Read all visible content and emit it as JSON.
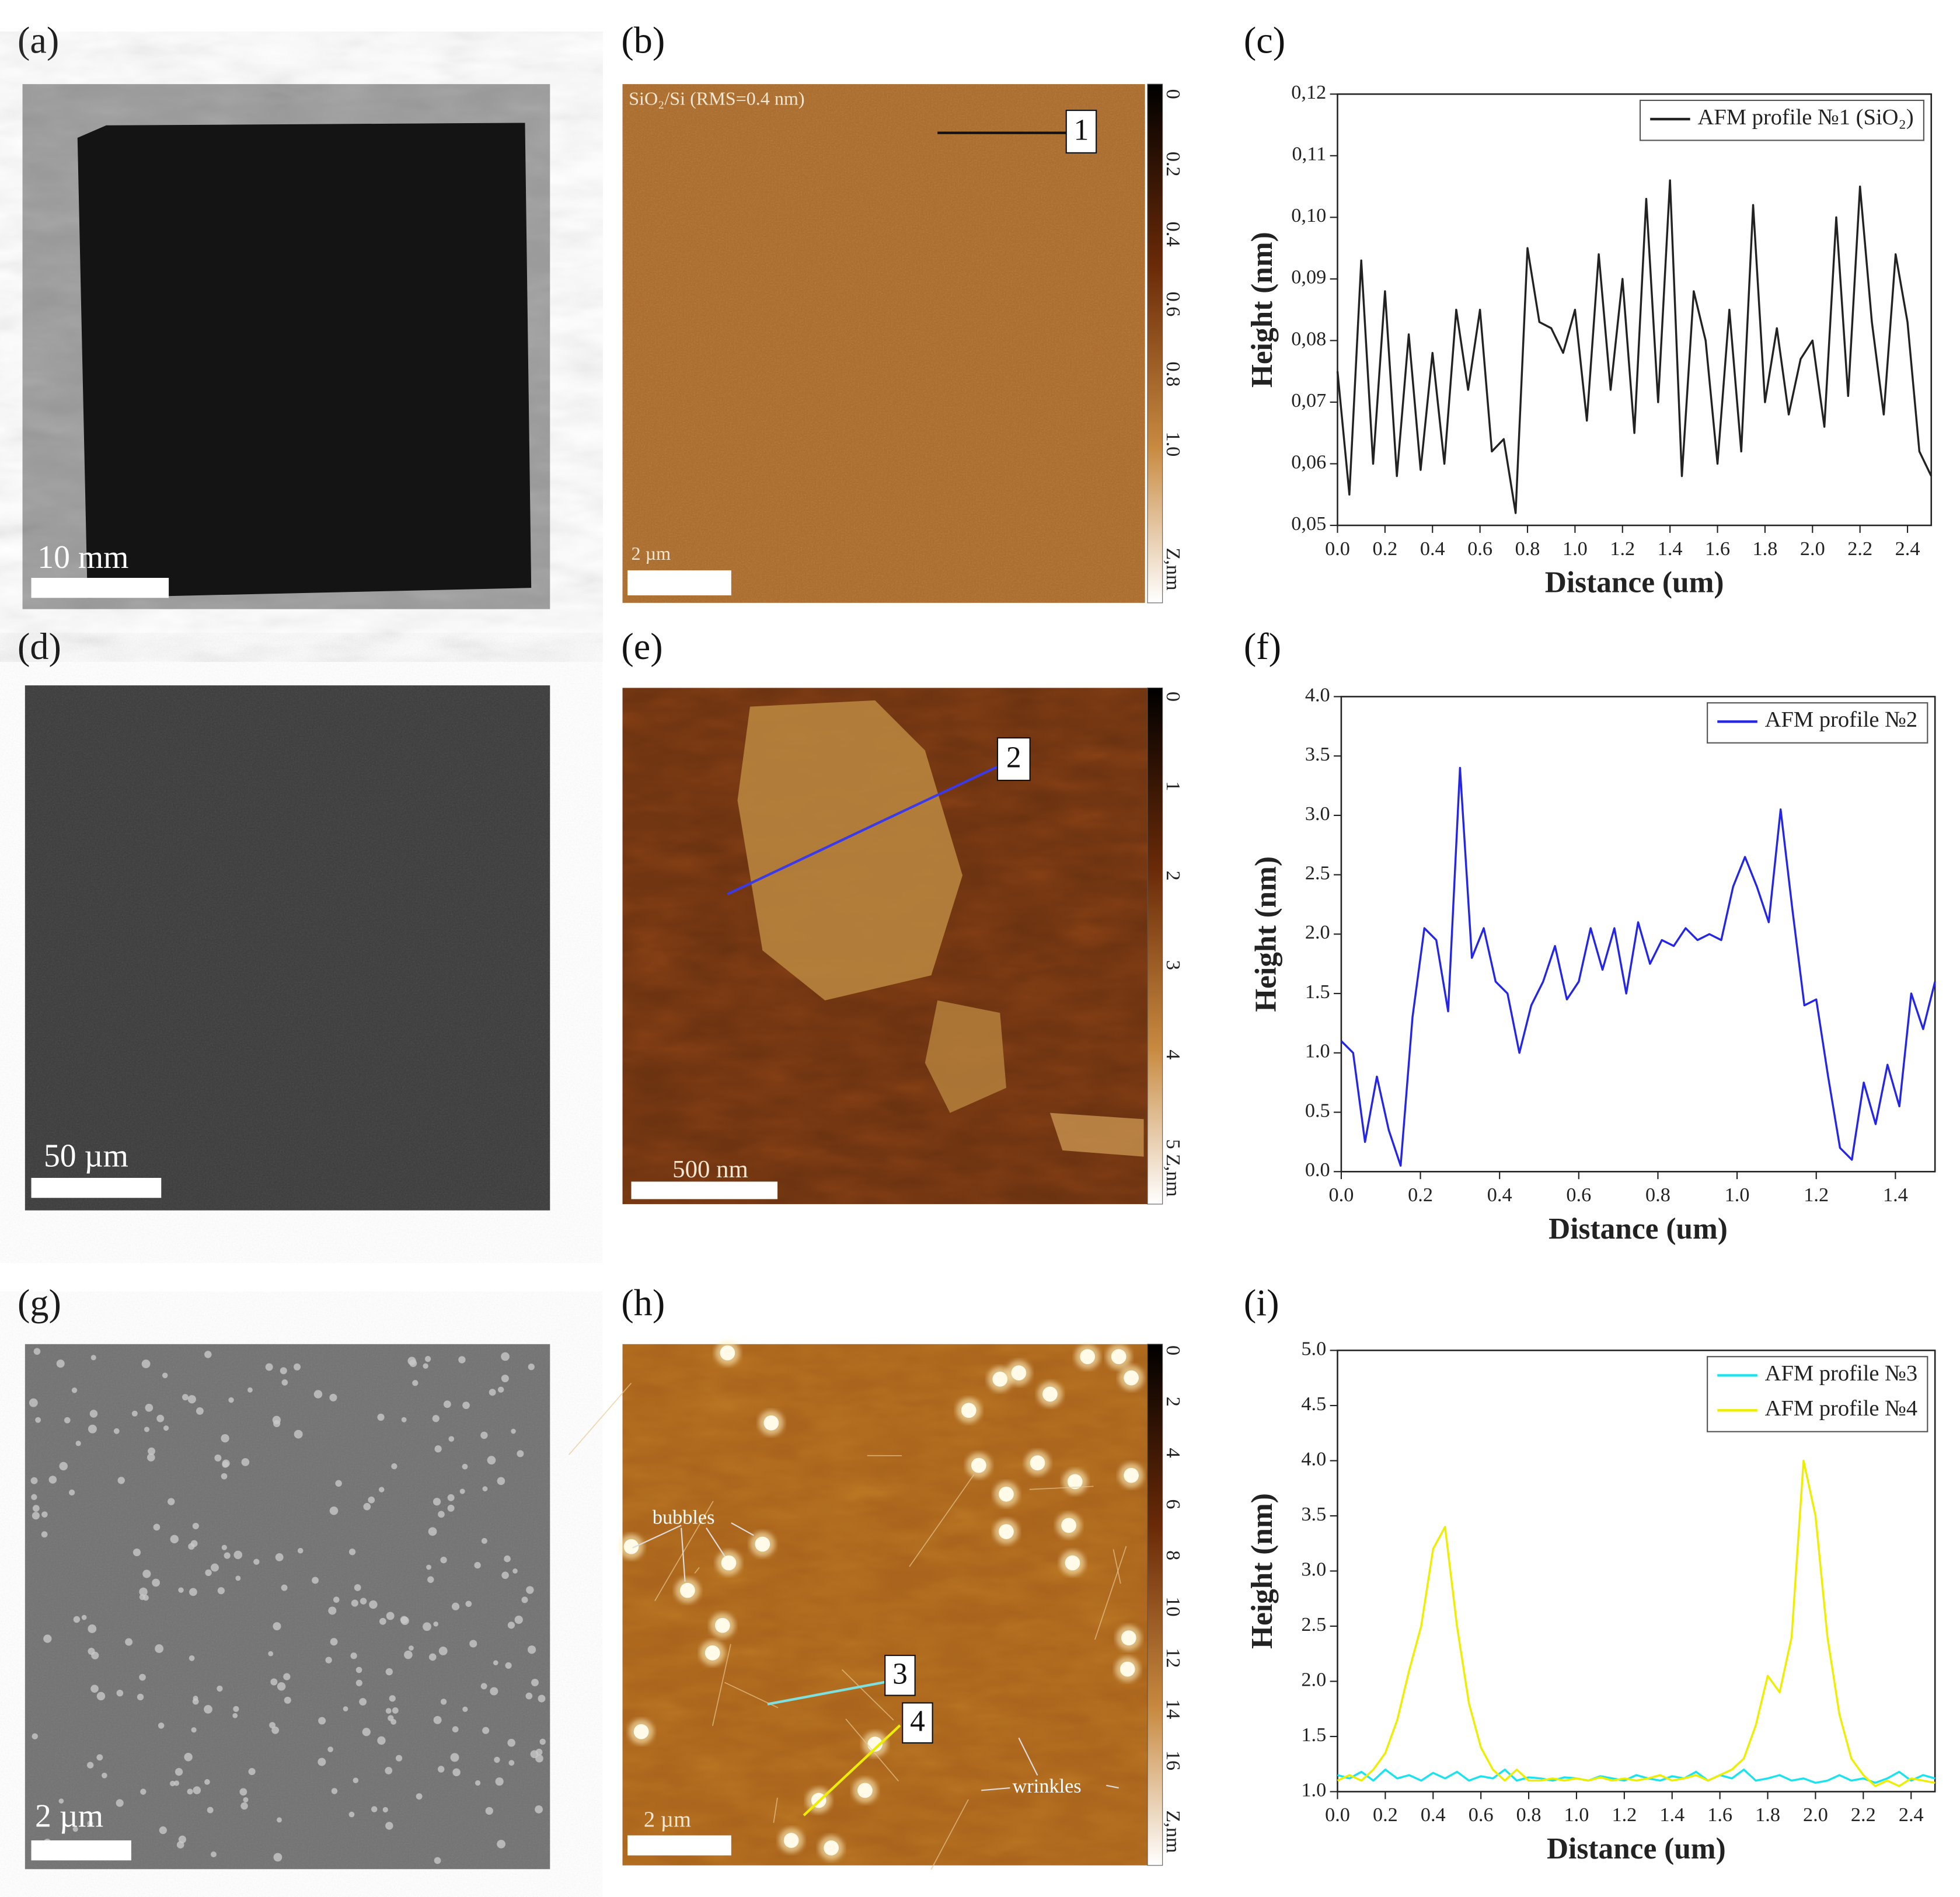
{
  "panels": [
    {
      "label": "(a)",
      "scale_bar": "10 mm"
    },
    {
      "label": "(b)",
      "caption": "SiO₂/Si (RMS=0.4 nm)",
      "profile_marks": [
        "1"
      ],
      "colorbar": {
        "ticks": [
          "0",
          "0.2",
          "0.4",
          "0.6",
          "0.8",
          "1.0"
        ],
        "unit": "Z,nm"
      },
      "scale_bar": "2 µm"
    },
    {
      "label": "(d)",
      "scale_bar": "50 µm"
    },
    {
      "label": "(e)",
      "profile_marks": [
        "2"
      ],
      "colorbar": {
        "ticks": [
          "0",
          "1",
          "2",
          "3",
          "4",
          "5"
        ],
        "unit": "Z,nm"
      },
      "scale_bar": "500 nm"
    },
    {
      "label": "(g)",
      "scale_bar": "2 µm"
    },
    {
      "label": "(h)",
      "profile_marks": [
        "3",
        "4"
      ],
      "annotations": [
        "bubbles",
        "wrinkles"
      ],
      "colorbar": {
        "ticks": [
          "0",
          "2",
          "4",
          "6",
          "8",
          "10",
          "12",
          "14",
          "16"
        ],
        "unit": "Z,nm"
      },
      "scale_bar": "2 µm"
    }
  ],
  "chart_data": [
    {
      "type": "line",
      "label": "(c)",
      "x_label": "Distance (um)",
      "y_label": "Height (nm)",
      "legend": "upper right",
      "x": [
        0,
        0.05,
        0.1,
        0.15,
        0.2,
        0.25,
        0.3,
        0.35,
        0.4,
        0.45,
        0.5,
        0.55,
        0.6,
        0.65,
        0.7,
        0.75,
        0.8,
        0.85,
        0.9,
        0.95,
        1,
        1.05,
        1.1,
        1.15,
        1.2,
        1.25,
        1.3,
        1.35,
        1.4,
        1.45,
        1.5,
        1.55,
        1.6,
        1.65,
        1.7,
        1.75,
        1.8,
        1.85,
        1.9,
        1.95,
        2,
        2.05,
        2.1,
        2.15,
        2.2,
        2.25,
        2.3,
        2.35,
        2.4,
        2.45,
        2.5
      ],
      "series": [
        {
          "name": "AFM profile №1 (SiO₂)",
          "color": "#222222",
          "values": [
            0.075,
            0.055,
            0.093,
            0.06,
            0.088,
            0.058,
            0.081,
            0.059,
            0.078,
            0.06,
            0.085,
            0.072,
            0.085,
            0.062,
            0.064,
            0.052,
            0.095,
            0.083,
            0.082,
            0.078,
            0.085,
            0.067,
            0.094,
            0.072,
            0.09,
            0.065,
            0.103,
            0.07,
            0.106,
            0.058,
            0.088,
            0.08,
            0.06,
            0.085,
            0.062,
            0.102,
            0.07,
            0.082,
            0.068,
            0.077,
            0.08,
            0.066,
            0.1,
            0.071,
            0.105,
            0.083,
            0.068,
            0.094,
            0.083,
            0.062,
            0.058
          ]
        }
      ],
      "xlim": [
        0,
        2.5
      ],
      "ylim": [
        0.05,
        0.12
      ],
      "xticks": [
        {
          "value": 0,
          "label": "0.0"
        },
        0.2,
        0.4,
        0.6,
        0.8,
        {
          "value": 1,
          "label": "1.0"
        },
        1.2,
        1.4,
        1.6,
        1.8,
        {
          "value": 2,
          "label": "2.0"
        },
        2.2,
        2.4
      ],
      "yticks": [
        {
          "value": 0.05,
          "label": "0,05"
        },
        {
          "value": 0.06,
          "label": "0,06"
        },
        {
          "value": 0.07,
          "label": "0,07"
        },
        {
          "value": 0.08,
          "label": "0,08"
        },
        {
          "value": 0.09,
          "label": "0,09"
        },
        {
          "value": 0.1,
          "label": "0,10"
        },
        {
          "value": 0.11,
          "label": "0,11"
        },
        {
          "value": 0.12,
          "label": "0,12"
        }
      ]
    },
    {
      "type": "line",
      "label": "(f)",
      "x_label": "Distance (um)",
      "y_label": "Height (nm)",
      "legend": "upper right",
      "x": [
        0,
        0.03,
        0.06,
        0.09,
        0.12,
        0.15,
        0.18,
        0.21,
        0.24,
        0.27,
        0.3,
        0.33,
        0.36,
        0.39,
        0.42,
        0.45,
        0.48,
        0.51,
        0.54,
        0.57,
        0.6,
        0.63,
        0.66,
        0.69,
        0.72,
        0.75,
        0.78,
        0.81,
        0.84,
        0.87,
        0.9,
        0.93,
        0.96,
        0.99,
        1.02,
        1.05,
        1.08,
        1.11,
        1.14,
        1.17,
        1.2,
        1.23,
        1.26,
        1.29,
        1.32,
        1.35,
        1.38,
        1.41,
        1.44,
        1.47,
        1.5
      ],
      "series": [
        {
          "name": "AFM profile №2",
          "color": "#2525e8",
          "values": [
            1.1,
            1.0,
            0.25,
            0.8,
            0.35,
            0.05,
            1.3,
            2.05,
            1.95,
            1.35,
            3.4,
            1.8,
            2.05,
            1.6,
            1.5,
            1.0,
            1.4,
            1.6,
            1.9,
            1.45,
            1.6,
            2.05,
            1.7,
            2.05,
            1.5,
            2.1,
            1.75,
            1.95,
            1.9,
            2.05,
            1.95,
            2.0,
            1.95,
            2.4,
            2.65,
            2.4,
            2.1,
            3.05,
            2.2,
            1.4,
            1.45,
            0.8,
            0.2,
            0.1,
            0.75,
            0.4,
            0.9,
            0.55,
            1.5,
            1.2,
            1.6
          ]
        }
      ],
      "xlim": [
        0,
        1.5
      ],
      "ylim": [
        0,
        4
      ],
      "xticks": [
        {
          "value": 0,
          "label": "0.0"
        },
        0.2,
        0.4,
        0.6,
        0.8,
        {
          "value": 1,
          "label": "1.0"
        },
        1.2,
        1.4
      ],
      "yticks": [
        {
          "value": 0,
          "label": "0.0"
        },
        0.5,
        {
          "value": 1,
          "label": "1.0"
        },
        1.5,
        {
          "value": 2,
          "label": "2.0"
        },
        2.5,
        {
          "value": 3,
          "label": "3.0"
        },
        3.5,
        {
          "value": 4,
          "label": "4.0"
        }
      ]
    },
    {
      "type": "line",
      "label": "(i)",
      "x_label": "Distance (um)",
      "y_label": "Height (nm)",
      "legend": "upper right",
      "x": [
        0,
        0.05,
        0.1,
        0.15,
        0.2,
        0.25,
        0.3,
        0.35,
        0.4,
        0.45,
        0.5,
        0.55,
        0.6,
        0.65,
        0.7,
        0.75,
        0.8,
        0.85,
        0.9,
        0.95,
        1,
        1.05,
        1.1,
        1.15,
        1.2,
        1.25,
        1.3,
        1.35,
        1.4,
        1.45,
        1.5,
        1.55,
        1.6,
        1.65,
        1.7,
        1.75,
        1.8,
        1.85,
        1.9,
        1.95,
        2,
        2.05,
        2.1,
        2.15,
        2.2,
        2.25,
        2.3,
        2.35,
        2.4,
        2.45,
        2.5
      ],
      "series": [
        {
          "name": "AFM profile №3",
          "color": "#19e3ee",
          "values": [
            1.15,
            1.12,
            1.18,
            1.1,
            1.2,
            1.12,
            1.15,
            1.1,
            1.17,
            1.12,
            1.18,
            1.1,
            1.14,
            1.12,
            1.2,
            1.1,
            1.13,
            1.12,
            1.1,
            1.13,
            1.12,
            1.1,
            1.14,
            1.12,
            1.1,
            1.15,
            1.12,
            1.1,
            1.14,
            1.12,
            1.18,
            1.1,
            1.15,
            1.12,
            1.2,
            1.1,
            1.12,
            1.15,
            1.1,
            1.12,
            1.08,
            1.1,
            1.15,
            1.1,
            1.12,
            1.08,
            1.12,
            1.18,
            1.1,
            1.15,
            1.12
          ]
        },
        {
          "name": "AFM profile №4",
          "color": "#eeee00",
          "values": [
            1.1,
            1.15,
            1.1,
            1.2,
            1.35,
            1.65,
            2.1,
            2.5,
            3.2,
            3.4,
            2.5,
            1.8,
            1.4,
            1.2,
            1.1,
            1.2,
            1.1,
            1.1,
            1.12,
            1.1,
            1.12,
            1.1,
            1.13,
            1.1,
            1.12,
            1.1,
            1.12,
            1.15,
            1.1,
            1.12,
            1.15,
            1.1,
            1.15,
            1.2,
            1.3,
            1.6,
            2.05,
            1.9,
            2.4,
            4.0,
            3.5,
            2.4,
            1.7,
            1.3,
            1.15,
            1.05,
            1.1,
            1.05,
            1.12,
            1.1,
            1.08
          ]
        }
      ],
      "xlim": [
        0,
        2.5
      ],
      "ylim": [
        1,
        5
      ],
      "xticks": [
        {
          "value": 0,
          "label": "0.0"
        },
        0.2,
        0.4,
        0.6,
        0.8,
        {
          "value": 1,
          "label": "1.0"
        },
        1.2,
        1.4,
        1.6,
        1.8,
        {
          "value": 2,
          "label": "2.0"
        },
        2.2,
        2.4
      ],
      "yticks": [
        {
          "value": 1,
          "label": "1.0"
        },
        1.5,
        {
          "value": 2,
          "label": "2.0"
        },
        2.5,
        {
          "value": 3,
          "label": "3.0"
        },
        3.5,
        {
          "value": 4,
          "label": "4.0"
        },
        4.5,
        {
          "value": 5,
          "label": "5.0"
        }
      ]
    }
  ]
}
